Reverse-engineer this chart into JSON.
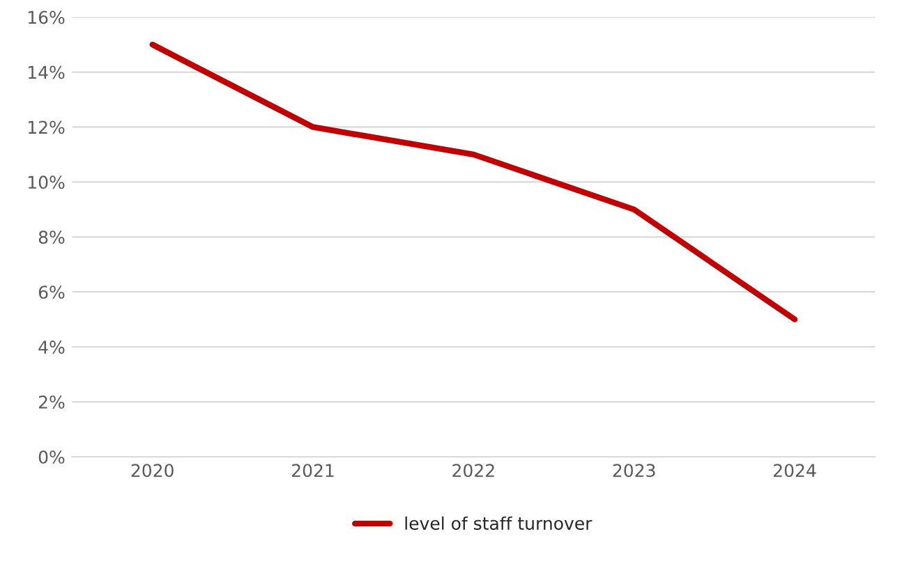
{
  "chart_data": {
    "type": "line",
    "categories": [
      "2020",
      "2021",
      "2022",
      "2023",
      "2024"
    ],
    "series": [
      {
        "name": "level of staff turnover",
        "color": "#c00000",
        "values": [
          15,
          12,
          11,
          9,
          5
        ]
      }
    ],
    "ylim": [
      0,
      16
    ],
    "yticks": [
      {
        "value": 0,
        "label": "0%"
      },
      {
        "value": 2,
        "label": "2%"
      },
      {
        "value": 4,
        "label": "4%"
      },
      {
        "value": 6,
        "label": "6%"
      },
      {
        "value": 8,
        "label": "8%"
      },
      {
        "value": 10,
        "label": "10%"
      },
      {
        "value": 12,
        "label": "12%"
      },
      {
        "value": 14,
        "label": "14%"
      },
      {
        "value": 16,
        "label": "16%"
      }
    ],
    "grid": "y",
    "legend": "bottom",
    "marker": "none",
    "line_style": "solid"
  }
}
